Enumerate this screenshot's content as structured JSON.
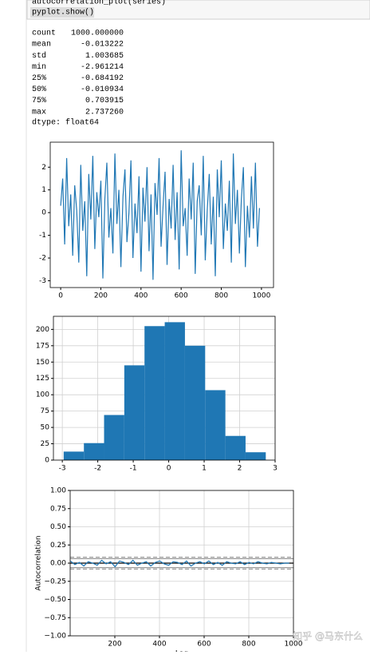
{
  "code": [
    "autocorrelation_plot(series)",
    "pyplot.show()"
  ],
  "output": {
    "rows": [
      [
        "count",
        "1000.000000"
      ],
      [
        "mean",
        "-0.013222"
      ],
      [
        "std",
        "1.003685"
      ],
      [
        "min",
        "-2.961214"
      ],
      [
        "25%",
        "-0.684192"
      ],
      [
        "50%",
        "-0.010934"
      ],
      [
        "75%",
        "0.703915"
      ],
      [
        "max",
        "2.737260"
      ]
    ],
    "dtype": "dtype: float64"
  },
  "chart_data": [
    {
      "type": "line",
      "color": "#1f77b4",
      "grid": false,
      "x": [
        0,
        10,
        20,
        30,
        40,
        50,
        60,
        70,
        80,
        90,
        100,
        110,
        120,
        130,
        140,
        150,
        160,
        170,
        180,
        190,
        200,
        210,
        220,
        230,
        240,
        250,
        260,
        270,
        280,
        290,
        300,
        310,
        320,
        330,
        340,
        350,
        360,
        370,
        380,
        390,
        400,
        410,
        420,
        430,
        440,
        450,
        460,
        470,
        480,
        490,
        500,
        510,
        520,
        530,
        540,
        550,
        560,
        570,
        580,
        590,
        600,
        610,
        620,
        630,
        640,
        650,
        660,
        670,
        680,
        690,
        700,
        710,
        720,
        730,
        740,
        750,
        760,
        770,
        780,
        790,
        800,
        810,
        820,
        830,
        840,
        850,
        860,
        870,
        880,
        890,
        900,
        910,
        920,
        930,
        940,
        950,
        960,
        970,
        980,
        990
      ],
      "values": [
        0.3,
        1.5,
        -1.4,
        2.4,
        -0.6,
        0.8,
        -1.9,
        1.2,
        0.1,
        -2.2,
        2.1,
        -0.8,
        0.5,
        -2.8,
        1.7,
        -0.3,
        2.5,
        -1.6,
        0.9,
        -0.2,
        1.4,
        -2.9,
        0.6,
        2.2,
        -1.1,
        0.2,
        -1.8,
        2.6,
        -0.5,
        1.0,
        -2.4,
        0.7,
        1.9,
        -1.3,
        0.0,
        2.3,
        -2.0,
        0.4,
        -0.9,
        1.6,
        -2.6,
        1.1,
        -0.4,
        2.0,
        -1.7,
        0.8,
        -2.96,
        1.3,
        -0.1,
        2.4,
        -1.5,
        0.3,
        1.8,
        -2.3,
        0.6,
        -0.7,
        2.1,
        -1.2,
        0.9,
        -2.5,
        2.74,
        -0.6,
        0.2,
        -1.9,
        1.5,
        -0.3,
        2.2,
        -2.7,
        0.5,
        1.2,
        -1.0,
        2.5,
        -2.1,
        0.1,
        1.7,
        -1.4,
        0.7,
        -2.8,
        1.9,
        -0.2,
        2.3,
        -1.6,
        0.4,
        -0.8,
        1.4,
        -2.2,
        2.6,
        -0.5,
        1.0,
        -1.8,
        0.6,
        2.0,
        -2.4,
        0.3,
        -1.1,
        1.6,
        -0.7,
        2.2,
        -1.5,
        0.2
      ],
      "xlim": [
        -52,
        1060
      ],
      "xticks": [
        0,
        200,
        400,
        600,
        800,
        1000
      ],
      "ylim": [
        -3.3,
        3.1
      ],
      "yticks": [
        -3,
        -2,
        -1,
        0,
        1,
        2
      ]
    },
    {
      "type": "histogram",
      "color": "#1f77b4",
      "grid": true,
      "bins": [
        -2.961,
        -2.391,
        -1.822,
        -1.252,
        -0.682,
        -0.112,
        0.458,
        1.028,
        1.598,
        2.167,
        2.737
      ],
      "values": [
        13,
        26,
        69,
        145,
        205,
        211,
        175,
        107,
        37,
        12
      ],
      "xlim": [
        -3.25,
        3.0
      ],
      "xticks": [
        -3,
        -2,
        -1,
        0,
        1,
        2,
        3
      ],
      "ylim": [
        0,
        220
      ],
      "yticks": [
        0,
        25,
        50,
        75,
        100,
        125,
        150,
        175,
        200
      ]
    },
    {
      "type": "line",
      "color": "#1f77b4",
      "grid": true,
      "y_label": "Autocorrelation",
      "x_label": "Lag",
      "x": [
        1,
        21,
        41,
        61,
        81,
        101,
        121,
        141,
        161,
        181,
        201,
        221,
        241,
        261,
        281,
        301,
        321,
        341,
        361,
        381,
        401,
        421,
        441,
        461,
        481,
        501,
        521,
        541,
        561,
        581,
        601,
        621,
        641,
        661,
        681,
        701,
        721,
        741,
        761,
        781,
        801,
        821,
        841,
        861,
        881,
        901,
        921,
        941,
        961,
        981
      ],
      "values": [
        0.03,
        -0.02,
        0.01,
        -0.04,
        0.02,
        0.0,
        -0.03,
        0.04,
        -0.01,
        0.02,
        -0.05,
        0.03,
        0.01,
        -0.02,
        0.04,
        -0.03,
        0.0,
        0.02,
        -0.04,
        0.01,
        0.03,
        -0.01,
        -0.03,
        0.02,
        0.01,
        -0.02,
        0.03,
        -0.04,
        0.0,
        0.02,
        -0.01,
        0.03,
        -0.02,
        0.01,
        -0.03,
        0.02,
        0.0,
        -0.01,
        0.02,
        -0.02,
        0.01,
        -0.01,
        0.02,
        0.0,
        -0.01,
        0.01,
        0.0,
        -0.01,
        0.0,
        0.0
      ],
      "reference_lines": [
        {
          "value": 0.0815,
          "color": "#999999",
          "dash": true
        },
        {
          "value": 0.0619,
          "color": "#999999",
          "dash": false
        },
        {
          "value": 0,
          "color": "#000000",
          "dash": false
        },
        {
          "value": -0.0619,
          "color": "#999999",
          "dash": false
        },
        {
          "value": -0.0815,
          "color": "#999999",
          "dash": true
        }
      ],
      "xlim": [
        0,
        1000
      ],
      "xticks": [
        200,
        400,
        600,
        800,
        1000
      ],
      "ylim": [
        -1,
        1
      ],
      "yticks": [
        {
          "value": -1,
          "label": "−1.00"
        },
        {
          "value": -0.75,
          "label": "−0.75"
        },
        {
          "value": -0.5,
          "label": "−0.50"
        },
        {
          "value": -0.25,
          "label": "−0.25"
        },
        {
          "value": 0,
          "label": "0.00"
        },
        {
          "value": 0.25,
          "label": "0.25"
        },
        {
          "value": 0.5,
          "label": "0.50"
        },
        {
          "value": 0.75,
          "label": "0.75"
        },
        {
          "value": 1,
          "label": "1.00"
        }
      ]
    }
  ],
  "watermark": "知乎 @马东什么"
}
